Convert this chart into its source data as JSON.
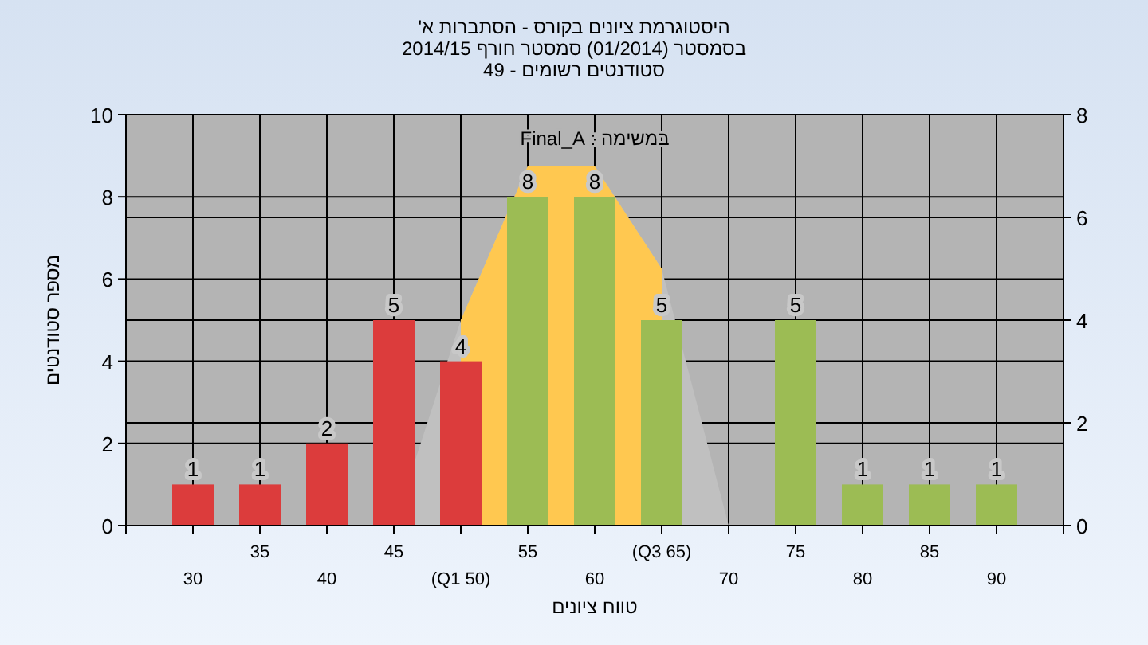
{
  "chart_data": {
    "type": "bar",
    "title": "היסטוגרמת ציונים בקורס - הסתברות א'",
    "subtitle": "בסמסטר (01/2014) סמסטר חורף 2014/15\nסטודנטים רשומים - 49",
    "xlabel": "טווח ציונים",
    "ylabel": "מספר סטודנטים",
    "annotations": [
      "במשימה : Final_A"
    ],
    "categories": [
      "30",
      "35",
      "40",
      "45",
      "(Q1 50)",
      "55",
      "60",
      "(Q3 65)",
      "70",
      "75",
      "80",
      "85",
      "90"
    ],
    "series": [
      {
        "type": "area",
        "axis": "y2",
        "color": "#c0c0c0",
        "values": [
          null,
          null,
          null,
          0,
          4,
          7,
          7,
          5,
          0,
          null,
          null,
          null,
          null
        ]
      },
      {
        "type": "area",
        "axis": "y2",
        "color": "#ffc850",
        "values": [
          null,
          null,
          null,
          null,
          4,
          7,
          7,
          5,
          null,
          null,
          null,
          null,
          null
        ]
      },
      {
        "colors": [
          "#dc3c3c",
          "#dc3c3c",
          "#dc3c3c",
          "#dc3c3c",
          "#dc3c3c",
          "#9cbc54",
          "#9cbc54",
          "#9cbc54",
          "#9cbc54",
          "#9cbc54",
          "#9cbc54",
          "#9cbc54",
          "#9cbc54"
        ],
        "values": [
          1,
          1,
          2,
          5,
          4,
          8,
          8,
          5,
          null,
          5,
          1,
          1,
          1
        ],
        "value_labels": [
          "1",
          "1",
          "2",
          "5",
          "4",
          "8",
          "8",
          "5",
          null,
          "5",
          "1",
          "1",
          "1"
        ]
      }
    ],
    "ylim": [
      0,
      10
    ],
    "yticks": [
      0,
      2,
      4,
      6,
      8,
      10
    ],
    "y2lim": [
      0,
      8
    ],
    "y2ticks": [
      0,
      2,
      4,
      6,
      8
    ],
    "grid": true
  }
}
